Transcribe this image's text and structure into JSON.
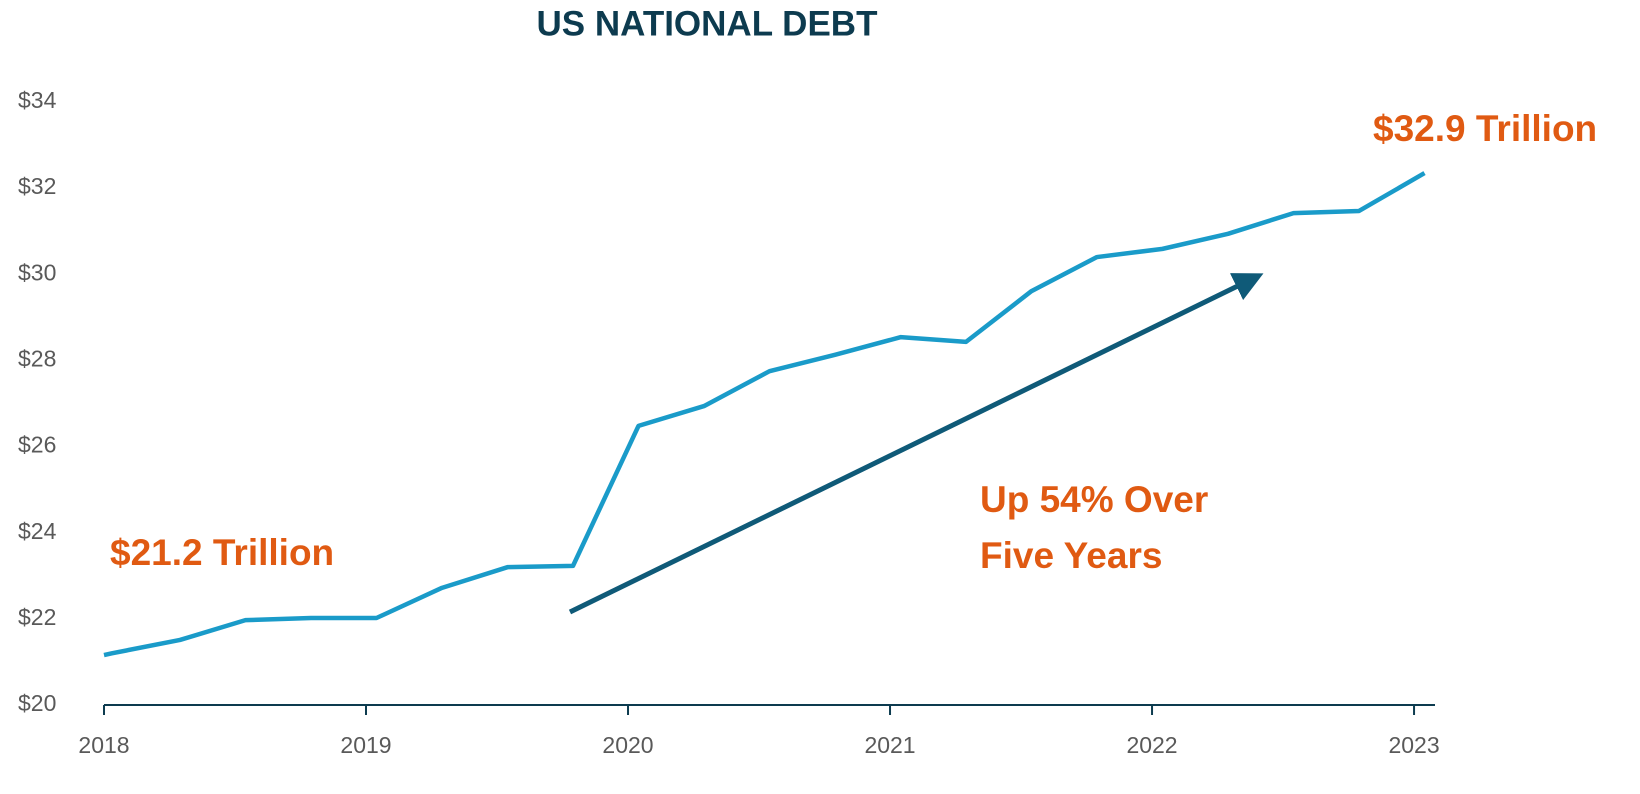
{
  "chart_data": {
    "type": "line",
    "title": "US NATIONAL DEBT",
    "x": [
      2018.0,
      2018.03,
      2018.29,
      2018.54,
      2018.79,
      2019.04,
      2019.29,
      2019.54,
      2019.79,
      2020.04,
      2020.29,
      2020.54,
      2020.79,
      2021.04,
      2021.29,
      2021.54,
      2021.79,
      2022.04,
      2022.29,
      2022.54,
      2022.79,
      2023.04
    ],
    "series": [
      {
        "color": "#1a9bc9",
        "values": [
          21.16,
          21.2,
          21.51,
          21.97,
          22.02,
          22.02,
          22.72,
          23.2,
          23.23,
          26.48,
          26.94,
          27.75,
          28.13,
          28.54,
          28.43,
          29.61,
          30.4,
          30.59,
          30.94,
          31.42,
          31.47,
          32.35
        ]
      }
    ],
    "xlim": [
      2018,
      2023.08
    ],
    "xticks": [
      2018,
      2019,
      2020,
      2021,
      2022,
      2023
    ],
    "ylim": [
      20,
      34
    ],
    "yticks": [
      {
        "value": 20,
        "label": "$20"
      },
      {
        "value": 22,
        "label": "$22"
      },
      {
        "value": 24,
        "label": "$24"
      },
      {
        "value": 26,
        "label": "$26"
      },
      {
        "value": 28,
        "label": "$28"
      },
      {
        "value": 30,
        "label": "$30"
      },
      {
        "value": 32,
        "label": "$32"
      },
      {
        "value": 34,
        "label": "$34"
      }
    ],
    "grid": false,
    "annotations": [
      {
        "text": "$21.2 Trillion"
      },
      {
        "lines": [
          "Up 54% Over",
          "Five Years"
        ]
      },
      {
        "text": "$32.9 Trillion"
      }
    ]
  }
}
